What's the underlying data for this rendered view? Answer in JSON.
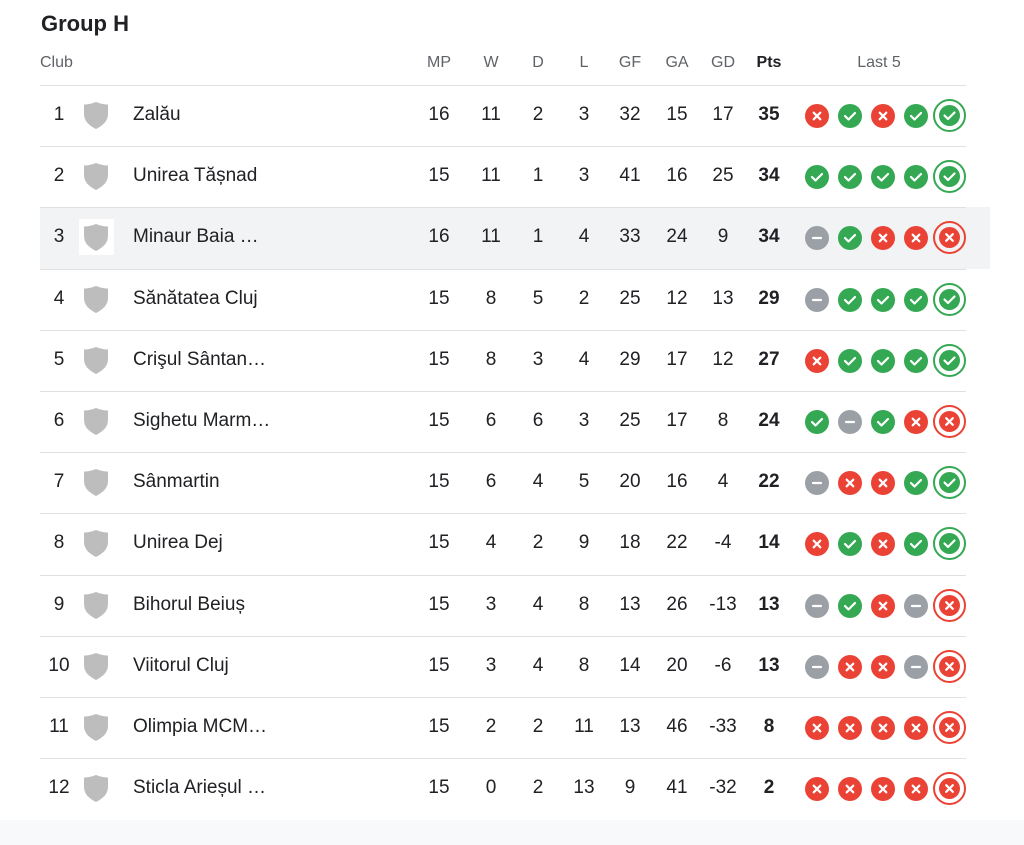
{
  "title": "Group H",
  "headers": {
    "club": "Club",
    "mp": "MP",
    "w": "W",
    "d": "D",
    "l": "L",
    "gf": "GF",
    "ga": "GA",
    "gd": "GD",
    "pts": "Pts",
    "last5": "Last 5"
  },
  "colors": {
    "win": "#34a853",
    "loss": "#ea4335",
    "draw": "#9aa0a6",
    "shield": "#bdbdbd"
  },
  "rows": [
    {
      "rank": "1",
      "club": "Zalău",
      "mp": "16",
      "w": "11",
      "d": "2",
      "l": "3",
      "gf": "32",
      "ga": "15",
      "gd": "17",
      "pts": "35",
      "last5": [
        "L",
        "W",
        "L",
        "W",
        "W"
      ]
    },
    {
      "rank": "2",
      "club": "Unirea Tășnad",
      "mp": "15",
      "w": "11",
      "d": "1",
      "l": "3",
      "gf": "41",
      "ga": "16",
      "gd": "25",
      "pts": "34",
      "last5": [
        "W",
        "W",
        "W",
        "W",
        "W"
      ]
    },
    {
      "rank": "3",
      "club": "Minaur Baia …",
      "mp": "16",
      "w": "11",
      "d": "1",
      "l": "4",
      "gf": "33",
      "ga": "24",
      "gd": "9",
      "pts": "34",
      "last5": [
        "D",
        "W",
        "L",
        "L",
        "L"
      ]
    },
    {
      "rank": "4",
      "club": "Sănătatea Cluj",
      "mp": "15",
      "w": "8",
      "d": "5",
      "l": "2",
      "gf": "25",
      "ga": "12",
      "gd": "13",
      "pts": "29",
      "last5": [
        "D",
        "W",
        "W",
        "W",
        "W"
      ]
    },
    {
      "rank": "5",
      "club": "Crişul Sântan…",
      "mp": "15",
      "w": "8",
      "d": "3",
      "l": "4",
      "gf": "29",
      "ga": "17",
      "gd": "12",
      "pts": "27",
      "last5": [
        "L",
        "W",
        "W",
        "W",
        "W"
      ]
    },
    {
      "rank": "6",
      "club": "Sighetu Marm…",
      "mp": "15",
      "w": "6",
      "d": "6",
      "l": "3",
      "gf": "25",
      "ga": "17",
      "gd": "8",
      "pts": "24",
      "last5": [
        "W",
        "D",
        "W",
        "L",
        "L"
      ]
    },
    {
      "rank": "7",
      "club": "Sânmartin",
      "mp": "15",
      "w": "6",
      "d": "4",
      "l": "5",
      "gf": "20",
      "ga": "16",
      "gd": "4",
      "pts": "22",
      "last5": [
        "D",
        "L",
        "L",
        "W",
        "W"
      ]
    },
    {
      "rank": "8",
      "club": "Unirea Dej",
      "mp": "15",
      "w": "4",
      "d": "2",
      "l": "9",
      "gf": "18",
      "ga": "22",
      "gd": "-4",
      "pts": "14",
      "last5": [
        "L",
        "W",
        "L",
        "W",
        "W"
      ]
    },
    {
      "rank": "9",
      "club": "Bihorul Beiuș",
      "mp": "15",
      "w": "3",
      "d": "4",
      "l": "8",
      "gf": "13",
      "ga": "26",
      "gd": "-13",
      "pts": "13",
      "last5": [
        "D",
        "W",
        "L",
        "D",
        "L"
      ]
    },
    {
      "rank": "10",
      "club": "Viitorul Cluj",
      "mp": "15",
      "w": "3",
      "d": "4",
      "l": "8",
      "gf": "14",
      "ga": "20",
      "gd": "-6",
      "pts": "13",
      "last5": [
        "D",
        "L",
        "L",
        "D",
        "L"
      ]
    },
    {
      "rank": "11",
      "club": "Olimpia MCM…",
      "mp": "15",
      "w": "2",
      "d": "2",
      "l": "11",
      "gf": "13",
      "ga": "46",
      "gd": "-33",
      "pts": "8",
      "last5": [
        "L",
        "L",
        "L",
        "L",
        "L"
      ]
    },
    {
      "rank": "12",
      "club": "Sticla Arieșul …",
      "mp": "15",
      "w": "0",
      "d": "2",
      "l": "13",
      "gf": "9",
      "ga": "41",
      "gd": "-32",
      "pts": "2",
      "last5": [
        "L",
        "L",
        "L",
        "L",
        "L"
      ]
    }
  ],
  "highlighted_row": 3
}
